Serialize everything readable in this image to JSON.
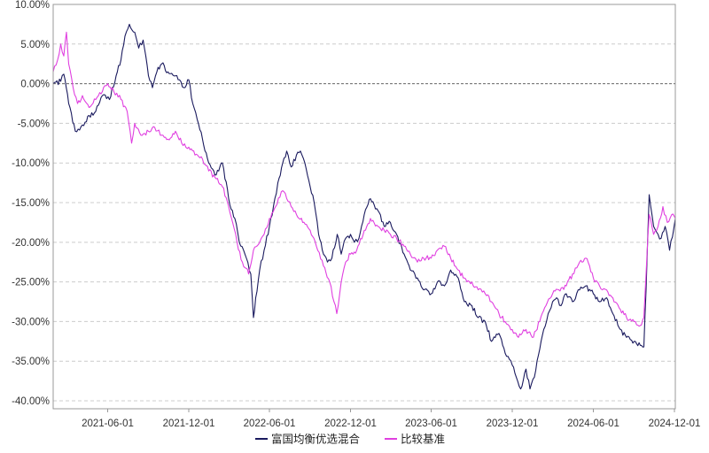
{
  "chart_data": {
    "type": "line",
    "title": "",
    "xlabel": "",
    "ylabel": "",
    "y_unit": "%",
    "ylim": [
      -41,
      10
    ],
    "y_ticks": [
      10,
      5,
      0,
      -5,
      -10,
      -15,
      -20,
      -25,
      -30,
      -35,
      -40
    ],
    "y_tick_labels": [
      "10.00%",
      "5.00%",
      "0.00%",
      "-5.00%",
      "-10.00%",
      "-15.00%",
      "-20.00%",
      "-25.00%",
      "-30.00%",
      "-35.00%",
      "-40.00%"
    ],
    "x_range": [
      "2021-01-29",
      "2024-12-03"
    ],
    "x_ticks": [
      "2021-06-01",
      "2021-12-01",
      "2022-06-01",
      "2022-12-01",
      "2023-06-01",
      "2023-12-01",
      "2024-06-01",
      "2024-12-01"
    ],
    "grid": "horizontal dashed",
    "zero_line": "dashed",
    "legend_position": "bottom-center",
    "series": [
      {
        "name": "富国均衡优选混合",
        "color": "#1a1a5e",
        "points": [
          [
            "2021-01-29",
            0.0
          ],
          [
            "2021-02-15",
            0.3
          ],
          [
            "2021-02-22",
            1.2
          ],
          [
            "2021-03-05",
            -2.5
          ],
          [
            "2021-03-20",
            -6.0
          ],
          [
            "2021-04-05",
            -5.2
          ],
          [
            "2021-04-20",
            -4.0
          ],
          [
            "2021-05-05",
            -3.5
          ],
          [
            "2021-05-20",
            -1.5
          ],
          [
            "2021-06-05",
            -2.0
          ],
          [
            "2021-06-20",
            1.0
          ],
          [
            "2021-07-01",
            3.0
          ],
          [
            "2021-07-10",
            6.0
          ],
          [
            "2021-07-20",
            7.5
          ],
          [
            "2021-08-01",
            6.5
          ],
          [
            "2021-08-10",
            4.5
          ],
          [
            "2021-08-20",
            5.5
          ],
          [
            "2021-09-01",
            1.0
          ],
          [
            "2021-09-10",
            -0.5
          ],
          [
            "2021-09-20",
            1.5
          ],
          [
            "2021-10-01",
            2.5
          ],
          [
            "2021-10-15",
            1.5
          ],
          [
            "2021-11-01",
            1.0
          ],
          [
            "2021-11-10",
            0.5
          ],
          [
            "2021-11-20",
            -0.5
          ],
          [
            "2021-12-01",
            0.5
          ],
          [
            "2021-12-10",
            -2.5
          ],
          [
            "2021-12-20",
            -4.5
          ],
          [
            "2022-01-01",
            -7.0
          ],
          [
            "2022-01-15",
            -10.0
          ],
          [
            "2022-02-01",
            -11.5
          ],
          [
            "2022-02-15",
            -10.0
          ],
          [
            "2022-03-01",
            -14.5
          ],
          [
            "2022-03-15",
            -17.0
          ],
          [
            "2022-03-25",
            -20.0
          ],
          [
            "2022-04-10",
            -22.0
          ],
          [
            "2022-04-20",
            -24.0
          ],
          [
            "2022-04-26",
            -29.5
          ],
          [
            "2022-05-01",
            -27.0
          ],
          [
            "2022-05-10",
            -23.5
          ],
          [
            "2022-05-20",
            -21.0
          ],
          [
            "2022-06-01",
            -18.0
          ],
          [
            "2022-06-10",
            -15.5
          ],
          [
            "2022-06-20",
            -12.5
          ],
          [
            "2022-07-01",
            -10.0
          ],
          [
            "2022-07-10",
            -8.5
          ],
          [
            "2022-07-20",
            -10.5
          ],
          [
            "2022-08-01",
            -9.0
          ],
          [
            "2022-08-10",
            -8.5
          ],
          [
            "2022-08-20",
            -10.0
          ],
          [
            "2022-09-01",
            -13.0
          ],
          [
            "2022-09-10",
            -15.0
          ],
          [
            "2022-09-20",
            -19.0
          ],
          [
            "2022-10-01",
            -21.5
          ],
          [
            "2022-10-10",
            -22.5
          ],
          [
            "2022-10-20",
            -22.0
          ],
          [
            "2022-11-01",
            -19.0
          ],
          [
            "2022-11-10",
            -21.5
          ],
          [
            "2022-11-20",
            -19.5
          ],
          [
            "2022-12-01",
            -19.0
          ],
          [
            "2022-12-10",
            -20.0
          ],
          [
            "2022-12-20",
            -19.5
          ],
          [
            "2023-01-01",
            -16.5
          ],
          [
            "2023-01-15",
            -14.5
          ],
          [
            "2023-02-01",
            -16.0
          ],
          [
            "2023-02-15",
            -18.0
          ],
          [
            "2023-03-01",
            -17.5
          ],
          [
            "2023-03-15",
            -19.0
          ],
          [
            "2023-04-01",
            -21.5
          ],
          [
            "2023-04-15",
            -23.5
          ],
          [
            "2023-05-01",
            -24.5
          ],
          [
            "2023-05-15",
            -26.0
          ],
          [
            "2023-06-01",
            -26.5
          ],
          [
            "2023-06-15",
            -25.0
          ],
          [
            "2023-07-01",
            -25.5
          ],
          [
            "2023-07-15",
            -23.5
          ],
          [
            "2023-08-01",
            -24.5
          ],
          [
            "2023-08-15",
            -27.5
          ],
          [
            "2023-09-01",
            -28.0
          ],
          [
            "2023-09-15",
            -29.5
          ],
          [
            "2023-10-01",
            -30.0
          ],
          [
            "2023-10-15",
            -32.5
          ],
          [
            "2023-11-01",
            -31.5
          ],
          [
            "2023-11-15",
            -34.0
          ],
          [
            "2023-12-01",
            -35.5
          ],
          [
            "2023-12-10",
            -37.0
          ],
          [
            "2023-12-20",
            -38.5
          ],
          [
            "2024-01-01",
            -36.0
          ],
          [
            "2024-01-10",
            -38.5
          ],
          [
            "2024-01-20",
            -37.0
          ],
          [
            "2024-02-01",
            -33.5
          ],
          [
            "2024-02-10",
            -31.0
          ],
          [
            "2024-02-20",
            -29.0
          ],
          [
            "2024-03-01",
            -27.5
          ],
          [
            "2024-03-10",
            -27.0
          ],
          [
            "2024-03-20",
            -28.0
          ],
          [
            "2024-04-01",
            -26.5
          ],
          [
            "2024-04-15",
            -27.5
          ],
          [
            "2024-05-01",
            -26.0
          ],
          [
            "2024-05-15",
            -25.5
          ],
          [
            "2024-06-01",
            -26.5
          ],
          [
            "2024-06-15",
            -27.5
          ],
          [
            "2024-07-01",
            -27.0
          ],
          [
            "2024-07-15",
            -29.0
          ],
          [
            "2024-08-01",
            -31.0
          ],
          [
            "2024-08-15",
            -32.0
          ],
          [
            "2024-09-01",
            -32.5
          ],
          [
            "2024-09-15",
            -33.0
          ],
          [
            "2024-09-23",
            -33.2
          ],
          [
            "2024-09-28",
            -26.0
          ],
          [
            "2024-10-05",
            -14.0
          ],
          [
            "2024-10-15",
            -18.0
          ],
          [
            "2024-10-25",
            -19.0
          ],
          [
            "2024-11-01",
            -19.5
          ],
          [
            "2024-11-10",
            -18.0
          ],
          [
            "2024-11-20",
            -21.0
          ],
          [
            "2024-12-03",
            -17.0
          ]
        ]
      },
      {
        "name": "比较基准",
        "color": "#e040e0",
        "points": [
          [
            "2021-01-29",
            1.5
          ],
          [
            "2021-02-08",
            3.0
          ],
          [
            "2021-02-15",
            5.0
          ],
          [
            "2021-02-22",
            3.5
          ],
          [
            "2021-02-28",
            6.5
          ],
          [
            "2021-03-05",
            2.5
          ],
          [
            "2021-03-15",
            -0.5
          ],
          [
            "2021-03-25",
            -2.5
          ],
          [
            "2021-04-05",
            -1.5
          ],
          [
            "2021-04-20",
            -3.0
          ],
          [
            "2021-05-05",
            -2.0
          ],
          [
            "2021-05-20",
            -1.0
          ],
          [
            "2021-06-01",
            0.0
          ],
          [
            "2021-06-15",
            -1.0
          ],
          [
            "2021-07-01",
            -2.0
          ],
          [
            "2021-07-15",
            -3.5
          ],
          [
            "2021-07-25",
            -7.5
          ],
          [
            "2021-08-01",
            -5.0
          ],
          [
            "2021-08-15",
            -6.5
          ],
          [
            "2021-09-01",
            -6.0
          ],
          [
            "2021-09-15",
            -5.5
          ],
          [
            "2021-10-01",
            -6.5
          ],
          [
            "2021-10-15",
            -7.0
          ],
          [
            "2021-11-01",
            -6.0
          ],
          [
            "2021-11-15",
            -7.5
          ],
          [
            "2021-12-01",
            -8.0
          ],
          [
            "2021-12-15",
            -9.0
          ],
          [
            "2022-01-01",
            -9.5
          ],
          [
            "2022-01-15",
            -11.0
          ],
          [
            "2022-02-01",
            -12.0
          ],
          [
            "2022-02-15",
            -13.0
          ],
          [
            "2022-03-01",
            -15.5
          ],
          [
            "2022-03-10",
            -17.5
          ],
          [
            "2022-03-20",
            -20.0
          ],
          [
            "2022-04-01",
            -22.5
          ],
          [
            "2022-04-15",
            -24.0
          ],
          [
            "2022-04-26",
            -21.0
          ],
          [
            "2022-05-10",
            -20.0
          ],
          [
            "2022-05-20",
            -19.0
          ],
          [
            "2022-06-01",
            -17.0
          ],
          [
            "2022-06-15",
            -15.5
          ],
          [
            "2022-07-01",
            -13.5
          ],
          [
            "2022-07-10",
            -14.5
          ],
          [
            "2022-07-20",
            -15.5
          ],
          [
            "2022-08-01",
            -16.5
          ],
          [
            "2022-08-15",
            -17.5
          ],
          [
            "2022-09-01",
            -18.5
          ],
          [
            "2022-09-15",
            -20.5
          ],
          [
            "2022-10-01",
            -23.0
          ],
          [
            "2022-10-15",
            -25.0
          ],
          [
            "2022-10-31",
            -29.0
          ],
          [
            "2022-11-10",
            -25.0
          ],
          [
            "2022-11-20",
            -22.5
          ],
          [
            "2022-12-01",
            -21.5
          ],
          [
            "2022-12-15",
            -21.0
          ],
          [
            "2023-01-01",
            -18.5
          ],
          [
            "2023-01-15",
            -17.0
          ],
          [
            "2023-02-01",
            -18.0
          ],
          [
            "2023-02-15",
            -18.5
          ],
          [
            "2023-03-01",
            -19.0
          ],
          [
            "2023-03-15",
            -19.5
          ],
          [
            "2023-04-01",
            -20.5
          ],
          [
            "2023-04-15",
            -21.5
          ],
          [
            "2023-05-01",
            -22.5
          ],
          [
            "2023-05-15",
            -22.0
          ],
          [
            "2023-06-01",
            -22.0
          ],
          [
            "2023-06-15",
            -21.0
          ],
          [
            "2023-07-01",
            -20.5
          ],
          [
            "2023-07-15",
            -22.0
          ],
          [
            "2023-08-01",
            -23.5
          ],
          [
            "2023-08-15",
            -24.5
          ],
          [
            "2023-09-01",
            -25.0
          ],
          [
            "2023-09-15",
            -26.0
          ],
          [
            "2023-10-01",
            -26.5
          ],
          [
            "2023-10-15",
            -27.5
          ],
          [
            "2023-11-01",
            -29.0
          ],
          [
            "2023-11-15",
            -30.0
          ],
          [
            "2023-12-01",
            -31.0
          ],
          [
            "2023-12-15",
            -32.0
          ],
          [
            "2024-01-01",
            -31.0
          ],
          [
            "2024-01-15",
            -32.0
          ],
          [
            "2024-02-01",
            -30.0
          ],
          [
            "2024-02-15",
            -28.0
          ],
          [
            "2024-03-01",
            -26.5
          ],
          [
            "2024-03-15",
            -26.0
          ],
          [
            "2024-04-01",
            -25.5
          ],
          [
            "2024-04-15",
            -24.0
          ],
          [
            "2024-05-01",
            -22.5
          ],
          [
            "2024-05-15",
            -22.0
          ],
          [
            "2024-06-01",
            -24.5
          ],
          [
            "2024-06-15",
            -25.5
          ],
          [
            "2024-07-01",
            -26.0
          ],
          [
            "2024-07-15",
            -27.0
          ],
          [
            "2024-08-01",
            -28.5
          ],
          [
            "2024-08-15",
            -29.5
          ],
          [
            "2024-09-01",
            -30.0
          ],
          [
            "2024-09-15",
            -30.5
          ],
          [
            "2024-09-23",
            -29.5
          ],
          [
            "2024-09-28",
            -24.0
          ],
          [
            "2024-10-05",
            -16.5
          ],
          [
            "2024-10-15",
            -19.0
          ],
          [
            "2024-10-25",
            -18.0
          ],
          [
            "2024-11-05",
            -15.5
          ],
          [
            "2024-11-15",
            -17.5
          ],
          [
            "2024-11-25",
            -16.5
          ],
          [
            "2024-12-03",
            -17.0
          ]
        ]
      }
    ]
  }
}
